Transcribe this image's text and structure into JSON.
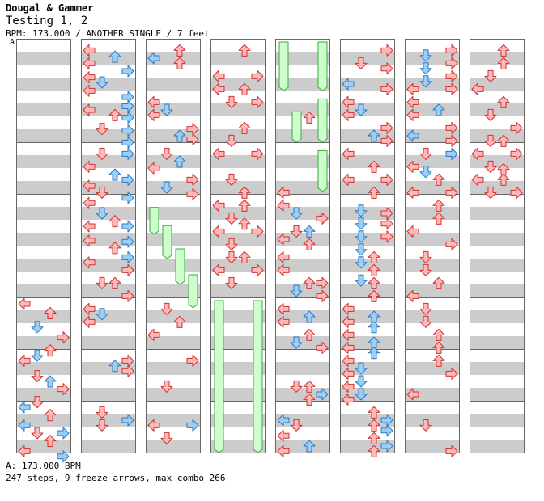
{
  "header": {
    "artist": "Dougal & Gammer",
    "title": "Testing 1, 2",
    "meta": "BPM: 173.000 / ANOTHER SINGLE / 7 feet"
  },
  "bpm_marker": "A",
  "footer": {
    "bpm_note": "A: 173.000 BPM",
    "stats": "247 steps, 9 freeze arrows, max combo 266"
  },
  "colors": {
    "red_arrow": "#ffb8b8",
    "red_outline": "#d03030",
    "blue_arrow": "#9ccff4",
    "blue_outline": "#2a78c8",
    "freeze_fill": "#ccffcc",
    "freeze_outline": "#3ea83e",
    "stripe_gray": "#cccccc",
    "column_border": "#666666"
  },
  "chart_data": {
    "type": "step-chart",
    "columns": 8,
    "measures_per_column": 8,
    "freezes": [
      {
        "col": 2,
        "lane": 0,
        "start": 3.2,
        "end": 3.78
      },
      {
        "col": 2,
        "lane": 1,
        "start": 3.55,
        "end": 4.25
      },
      {
        "col": 2,
        "lane": 2,
        "start": 4.0,
        "end": 4.75
      },
      {
        "col": 2,
        "lane": 3,
        "start": 4.5,
        "end": 5.2
      },
      {
        "col": 3,
        "lane": 0,
        "start": 5.0,
        "end": 8.0
      },
      {
        "col": 3,
        "lane": 3,
        "start": 5.0,
        "end": 8.0
      },
      {
        "col": 4,
        "lane": 0,
        "start": 0.0,
        "end": 1.0
      },
      {
        "col": 4,
        "lane": 3,
        "start": 0.0,
        "end": 1.0
      },
      {
        "col": 4,
        "lane": 1,
        "start": 1.35,
        "end": 2.0
      },
      {
        "col": 4,
        "lane": 3,
        "start": 1.1,
        "end": 2.0
      },
      {
        "col": 4,
        "lane": 3,
        "start": 2.1,
        "end": 2.95
      }
    ],
    "notes": [
      [
        0,
        0,
        5.0,
        "r"
      ],
      [
        0,
        2,
        5.18,
        "r"
      ],
      [
        0,
        1,
        5.45,
        "b"
      ],
      [
        0,
        3,
        5.65,
        "r"
      ],
      [
        0,
        2,
        5.9,
        "r"
      ],
      [
        0,
        0,
        6.1,
        "r"
      ],
      [
        0,
        1,
        6.0,
        "b"
      ],
      [
        0,
        1,
        6.4,
        "r"
      ],
      [
        0,
        2,
        6.5,
        "b"
      ],
      [
        0,
        3,
        6.65,
        "r"
      ],
      [
        0,
        1,
        6.9,
        "r"
      ],
      [
        0,
        0,
        7.0,
        "b"
      ],
      [
        0,
        2,
        7.15,
        "r"
      ],
      [
        0,
        1,
        7.5,
        "r"
      ],
      [
        0,
        0,
        7.35,
        "b"
      ],
      [
        0,
        3,
        7.5,
        "b"
      ],
      [
        0,
        2,
        7.65,
        "r"
      ],
      [
        0,
        0,
        7.85,
        "r"
      ],
      [
        0,
        3,
        7.95,
        "b"
      ],
      [
        1,
        0,
        0.1,
        "r"
      ],
      [
        1,
        2,
        0.22,
        "b"
      ],
      [
        1,
        0,
        0.35,
        "r"
      ],
      [
        1,
        3,
        0.5,
        "b"
      ],
      [
        1,
        0,
        0.62,
        "r"
      ],
      [
        1,
        1,
        0.72,
        "b"
      ],
      [
        1,
        0,
        0.88,
        "r"
      ],
      [
        1,
        3,
        1.0,
        "b"
      ],
      [
        1,
        2,
        1.35,
        "r"
      ],
      [
        1,
        3,
        1.18,
        "b"
      ],
      [
        1,
        0,
        1.25,
        "r"
      ],
      [
        1,
        3,
        1.4,
        "b"
      ],
      [
        1,
        1,
        1.62,
        "r"
      ],
      [
        1,
        3,
        1.65,
        "b"
      ],
      [
        1,
        3,
        1.88,
        "b"
      ],
      [
        1,
        1,
        2.1,
        "r"
      ],
      [
        1,
        3,
        2.1,
        "b"
      ],
      [
        1,
        0,
        2.35,
        "r"
      ],
      [
        1,
        2,
        2.5,
        "b"
      ],
      [
        1,
        3,
        2.6,
        "b"
      ],
      [
        1,
        0,
        2.72,
        "r"
      ],
      [
        1,
        1,
        2.85,
        "r"
      ],
      [
        1,
        3,
        2.95,
        "b"
      ],
      [
        1,
        0,
        3.05,
        "r"
      ],
      [
        1,
        1,
        3.25,
        "b"
      ],
      [
        1,
        2,
        3.4,
        "r"
      ],
      [
        1,
        3,
        3.5,
        "b"
      ],
      [
        1,
        0,
        3.5,
        "r"
      ],
      [
        1,
        0,
        3.78,
        "r"
      ],
      [
        1,
        3,
        3.8,
        "b"
      ],
      [
        1,
        2,
        3.92,
        "r"
      ],
      [
        1,
        3,
        4.1,
        "b"
      ],
      [
        1,
        0,
        4.2,
        "r"
      ],
      [
        1,
        3,
        4.35,
        "r"
      ],
      [
        1,
        1,
        4.6,
        "r"
      ],
      [
        1,
        2,
        4.6,
        "r"
      ],
      [
        1,
        3,
        4.85,
        "r"
      ],
      [
        1,
        0,
        5.1,
        "r"
      ],
      [
        1,
        1,
        5.2,
        "b"
      ],
      [
        1,
        0,
        5.35,
        "r"
      ],
      [
        1,
        2,
        6.2,
        "b"
      ],
      [
        1,
        3,
        6.1,
        "r"
      ],
      [
        1,
        3,
        6.3,
        "r"
      ],
      [
        1,
        1,
        7.1,
        "r"
      ],
      [
        1,
        1,
        7.35,
        "r"
      ],
      [
        1,
        3,
        7.25,
        "b"
      ],
      [
        2,
        0,
        0.25,
        "b"
      ],
      [
        2,
        2,
        0.1,
        "r"
      ],
      [
        2,
        2,
        0.35,
        "r"
      ],
      [
        2,
        0,
        1.1,
        "r"
      ],
      [
        2,
        0,
        1.35,
        "r"
      ],
      [
        2,
        1,
        1.25,
        "b"
      ],
      [
        2,
        3,
        1.62,
        "r"
      ],
      [
        2,
        2,
        1.75,
        "b"
      ],
      [
        2,
        3,
        1.82,
        "r"
      ],
      [
        2,
        1,
        2.1,
        "r"
      ],
      [
        2,
        0,
        2.38,
        "r"
      ],
      [
        2,
        2,
        2.25,
        "b"
      ],
      [
        2,
        3,
        2.6,
        "r"
      ],
      [
        2,
        1,
        2.75,
        "b"
      ],
      [
        2,
        3,
        2.88,
        "r"
      ],
      [
        2,
        1,
        5.1,
        "r"
      ],
      [
        2,
        2,
        5.35,
        "r"
      ],
      [
        2,
        0,
        5.6,
        "r"
      ],
      [
        2,
        3,
        6.1,
        "r"
      ],
      [
        2,
        1,
        6.6,
        "r"
      ],
      [
        2,
        0,
        7.35,
        "r"
      ],
      [
        2,
        3,
        7.35,
        "b"
      ],
      [
        2,
        1,
        7.6,
        "r"
      ],
      [
        3,
        2,
        0.1,
        "r"
      ],
      [
        3,
        0,
        0.6,
        "r"
      ],
      [
        3,
        3,
        0.6,
        "r"
      ],
      [
        3,
        0,
        0.85,
        "r"
      ],
      [
        3,
        2,
        0.85,
        "r"
      ],
      [
        3,
        1,
        1.1,
        "r"
      ],
      [
        3,
        3,
        1.1,
        "r"
      ],
      [
        3,
        2,
        1.6,
        "r"
      ],
      [
        3,
        1,
        1.85,
        "r"
      ],
      [
        3,
        0,
        2.1,
        "r"
      ],
      [
        3,
        3,
        2.1,
        "r"
      ],
      [
        3,
        1,
        2.6,
        "r"
      ],
      [
        3,
        2,
        2.85,
        "r"
      ],
      [
        3,
        0,
        3.1,
        "r"
      ],
      [
        3,
        2,
        3.1,
        "r"
      ],
      [
        3,
        1,
        3.35,
        "r"
      ],
      [
        3,
        2,
        3.45,
        "r"
      ],
      [
        3,
        0,
        3.6,
        "r"
      ],
      [
        3,
        1,
        3.85,
        "r"
      ],
      [
        3,
        3,
        3.6,
        "r"
      ],
      [
        3,
        1,
        4.1,
        "r"
      ],
      [
        3,
        2,
        4.1,
        "r"
      ],
      [
        3,
        0,
        4.35,
        "r"
      ],
      [
        3,
        3,
        4.35,
        "r"
      ],
      [
        3,
        1,
        4.6,
        "r"
      ],
      [
        4,
        2,
        1.4,
        "r"
      ],
      [
        4,
        0,
        2.85,
        "r"
      ],
      [
        4,
        0,
        3.1,
        "r"
      ],
      [
        4,
        1,
        3.25,
        "b"
      ],
      [
        4,
        3,
        3.35,
        "r"
      ],
      [
        4,
        2,
        3.6,
        "b"
      ],
      [
        4,
        1,
        3.6,
        "r"
      ],
      [
        4,
        0,
        3.75,
        "r"
      ],
      [
        4,
        2,
        3.85,
        "r"
      ],
      [
        4,
        0,
        4.1,
        "r"
      ],
      [
        4,
        0,
        4.35,
        "r"
      ],
      [
        4,
        2,
        4.6,
        "r"
      ],
      [
        4,
        3,
        4.6,
        "r"
      ],
      [
        4,
        1,
        4.75,
        "b"
      ],
      [
        4,
        3,
        4.85,
        "r"
      ],
      [
        4,
        0,
        5.1,
        "r"
      ],
      [
        4,
        2,
        5.25,
        "b"
      ],
      [
        4,
        0,
        5.35,
        "r"
      ],
      [
        4,
        2,
        5.6,
        "r"
      ],
      [
        4,
        1,
        5.75,
        "b"
      ],
      [
        4,
        3,
        5.85,
        "r"
      ],
      [
        4,
        1,
        6.6,
        "r"
      ],
      [
        4,
        2,
        6.6,
        "r"
      ],
      [
        4,
        2,
        6.85,
        "r"
      ],
      [
        4,
        3,
        6.75,
        "b"
      ],
      [
        4,
        0,
        7.25,
        "b"
      ],
      [
        4,
        1,
        7.35,
        "r"
      ],
      [
        4,
        0,
        7.55,
        "r"
      ],
      [
        4,
        2,
        7.75,
        "b"
      ],
      [
        4,
        0,
        7.85,
        "r"
      ],
      [
        5,
        3,
        0.1,
        "r"
      ],
      [
        5,
        1,
        0.35,
        "r"
      ],
      [
        5,
        3,
        0.45,
        "r"
      ],
      [
        5,
        0,
        0.75,
        "b"
      ],
      [
        5,
        3,
        0.85,
        "r"
      ],
      [
        5,
        0,
        1.1,
        "r"
      ],
      [
        5,
        1,
        1.25,
        "b"
      ],
      [
        5,
        0,
        1.35,
        "r"
      ],
      [
        5,
        3,
        1.6,
        "r"
      ],
      [
        5,
        2,
        1.75,
        "b"
      ],
      [
        5,
        3,
        1.85,
        "r"
      ],
      [
        5,
        0,
        2.1,
        "r"
      ],
      [
        5,
        2,
        2.35,
        "r"
      ],
      [
        5,
        0,
        2.6,
        "r"
      ],
      [
        5,
        3,
        2.6,
        "r"
      ],
      [
        5,
        2,
        2.85,
        "r"
      ],
      [
        5,
        1,
        3.2,
        "b"
      ],
      [
        5,
        3,
        3.25,
        "r"
      ],
      [
        5,
        1,
        3.45,
        "b"
      ],
      [
        5,
        3,
        3.45,
        "r"
      ],
      [
        5,
        1,
        3.7,
        "b"
      ],
      [
        5,
        3,
        3.7,
        "r"
      ],
      [
        5,
        1,
        3.95,
        "b"
      ],
      [
        5,
        2,
        4.1,
        "r"
      ],
      [
        5,
        1,
        4.2,
        "b"
      ],
      [
        5,
        2,
        4.35,
        "r"
      ],
      [
        5,
        1,
        4.55,
        "b"
      ],
      [
        5,
        2,
        4.6,
        "r"
      ],
      [
        5,
        2,
        4.85,
        "r"
      ],
      [
        5,
        0,
        5.1,
        "r"
      ],
      [
        5,
        2,
        5.25,
        "b"
      ],
      [
        5,
        0,
        5.35,
        "r"
      ],
      [
        5,
        2,
        5.45,
        "b"
      ],
      [
        5,
        0,
        5.6,
        "r"
      ],
      [
        5,
        2,
        5.75,
        "b"
      ],
      [
        5,
        0,
        5.85,
        "r"
      ],
      [
        5,
        2,
        5.95,
        "b"
      ],
      [
        5,
        0,
        6.1,
        "r"
      ],
      [
        5,
        1,
        6.25,
        "b"
      ],
      [
        5,
        0,
        6.35,
        "r"
      ],
      [
        5,
        1,
        6.5,
        "b"
      ],
      [
        5,
        0,
        6.6,
        "r"
      ],
      [
        5,
        1,
        6.75,
        "b"
      ],
      [
        5,
        0,
        6.85,
        "r"
      ],
      [
        5,
        2,
        7.1,
        "r"
      ],
      [
        5,
        3,
        7.25,
        "b"
      ],
      [
        5,
        2,
        7.35,
        "r"
      ],
      [
        5,
        3,
        7.45,
        "b"
      ],
      [
        5,
        2,
        7.6,
        "r"
      ],
      [
        5,
        3,
        7.75,
        "b"
      ],
      [
        5,
        2,
        7.85,
        "r"
      ],
      [
        6,
        1,
        0.2,
        "b"
      ],
      [
        6,
        3,
        0.1,
        "r"
      ],
      [
        6,
        1,
        0.45,
        "b"
      ],
      [
        6,
        3,
        0.35,
        "r"
      ],
      [
        6,
        3,
        0.6,
        "r"
      ],
      [
        6,
        1,
        0.7,
        "b"
      ],
      [
        6,
        0,
        0.85,
        "r"
      ],
      [
        6,
        3,
        0.85,
        "r"
      ],
      [
        6,
        0,
        1.1,
        "r"
      ],
      [
        6,
        2,
        1.25,
        "b"
      ],
      [
        6,
        0,
        1.35,
        "r"
      ],
      [
        6,
        3,
        1.6,
        "r"
      ],
      [
        6,
        0,
        1.75,
        "b"
      ],
      [
        6,
        3,
        1.85,
        "r"
      ],
      [
        6,
        1,
        2.1,
        "r"
      ],
      [
        6,
        3,
        2.1,
        "b"
      ],
      [
        6,
        0,
        2.35,
        "r"
      ],
      [
        6,
        1,
        2.45,
        "b"
      ],
      [
        6,
        2,
        2.6,
        "r"
      ],
      [
        6,
        0,
        2.85,
        "r"
      ],
      [
        6,
        3,
        2.85,
        "r"
      ],
      [
        6,
        2,
        3.1,
        "r"
      ],
      [
        6,
        2,
        3.35,
        "r"
      ],
      [
        6,
        0,
        3.6,
        "r"
      ],
      [
        6,
        3,
        3.85,
        "r"
      ],
      [
        6,
        1,
        4.1,
        "r"
      ],
      [
        6,
        1,
        4.35,
        "r"
      ],
      [
        6,
        2,
        4.6,
        "r"
      ],
      [
        6,
        0,
        4.85,
        "r"
      ],
      [
        6,
        1,
        5.1,
        "r"
      ],
      [
        6,
        1,
        5.35,
        "r"
      ],
      [
        6,
        2,
        5.6,
        "r"
      ],
      [
        6,
        2,
        5.85,
        "r"
      ],
      [
        6,
        2,
        6.1,
        "r"
      ],
      [
        6,
        3,
        6.35,
        "r"
      ],
      [
        6,
        0,
        6.75,
        "r"
      ],
      [
        6,
        1,
        7.35,
        "r"
      ],
      [
        6,
        3,
        7.85,
        "r"
      ],
      [
        7,
        2,
        0.1,
        "r"
      ],
      [
        7,
        2,
        0.35,
        "r"
      ],
      [
        7,
        1,
        0.6,
        "r"
      ],
      [
        7,
        0,
        0.85,
        "r"
      ],
      [
        7,
        2,
        1.1,
        "r"
      ],
      [
        7,
        1,
        1.35,
        "r"
      ],
      [
        7,
        3,
        1.6,
        "r"
      ],
      [
        7,
        1,
        1.85,
        "r"
      ],
      [
        7,
        2,
        1.85,
        "r"
      ],
      [
        7,
        0,
        2.1,
        "r"
      ],
      [
        7,
        3,
        2.1,
        "r"
      ],
      [
        7,
        1,
        2.35,
        "r"
      ],
      [
        7,
        2,
        2.4,
        "r"
      ],
      [
        7,
        0,
        2.6,
        "r"
      ],
      [
        7,
        2,
        2.6,
        "r"
      ],
      [
        7,
        1,
        2.85,
        "r"
      ],
      [
        7,
        3,
        2.85,
        "r"
      ]
    ]
  }
}
